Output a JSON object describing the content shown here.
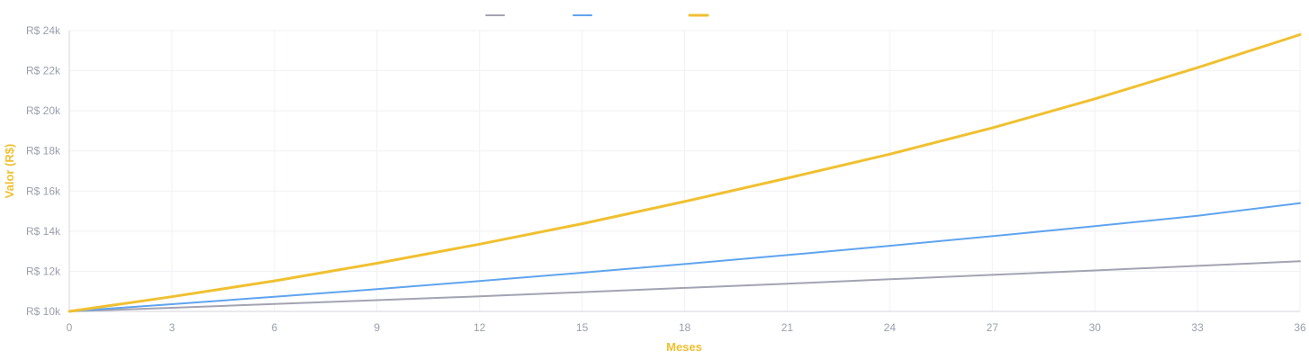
{
  "chart_data": {
    "type": "line",
    "xlabel": "Meses",
    "ylabel": "Valor (R$)",
    "xlim": [
      0,
      36
    ],
    "ylim": [
      10000,
      24000
    ],
    "x_ticks": [
      0,
      3,
      6,
      9,
      12,
      15,
      18,
      21,
      24,
      27,
      30,
      33,
      36
    ],
    "y_ticks": [
      10000,
      12000,
      14000,
      16000,
      18000,
      20000,
      22000,
      24000
    ],
    "y_tick_labels": [
      "R$ 10k",
      "R$ 12k",
      "R$ 14k",
      "R$ 16k",
      "R$ 18k",
      "R$ 20k",
      "R$ 22k",
      "R$ 24k"
    ],
    "grid": true,
    "legend_position": "top-center",
    "axis_title_color": "#f0c030",
    "series": [
      {
        "color": "#a3a3b3",
        "x": [
          0,
          3,
          6,
          9,
          12,
          15,
          18,
          21,
          24,
          27,
          30,
          33,
          36
        ],
        "values": [
          10000,
          10180,
          10370,
          10560,
          10750,
          10960,
          11170,
          11380,
          11600,
          11820,
          12040,
          12270,
          12500
        ]
      },
      {
        "color": "#5fa4ee",
        "x": [
          0,
          3,
          6,
          9,
          12,
          15,
          18,
          21,
          24,
          27,
          30,
          33,
          36
        ],
        "values": [
          10000,
          10360,
          10730,
          11110,
          11510,
          11930,
          12360,
          12810,
          13270,
          13750,
          14250,
          14770,
          15400
        ]
      },
      {
        "color": "#f0c030",
        "x": [
          0,
          3,
          6,
          9,
          12,
          15,
          18,
          21,
          24,
          27,
          30,
          33,
          36
        ],
        "values": [
          10000,
          10730,
          11520,
          12400,
          13350,
          14370,
          15480,
          16640,
          17840,
          19150,
          20600,
          22150,
          23800
        ]
      }
    ]
  }
}
